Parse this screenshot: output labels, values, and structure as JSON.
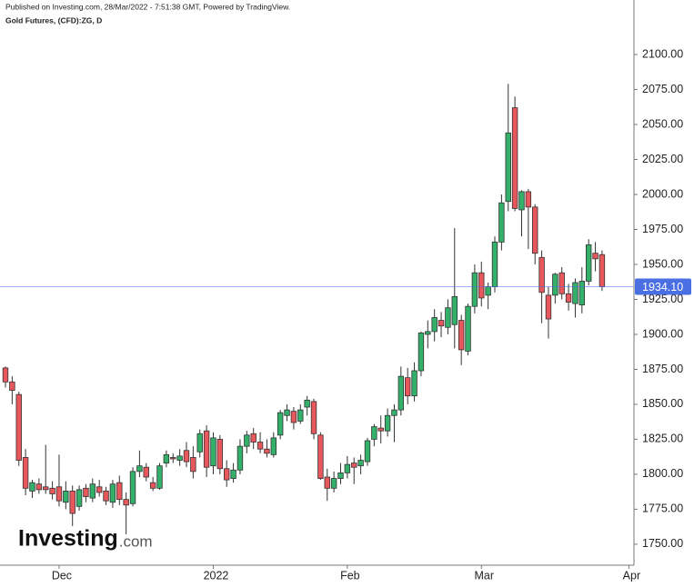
{
  "header": {
    "published": "Published on Investing.com, 28/Mar/2022 - 7:51:38 GMT, Powered by TradingView.",
    "symbol": "Gold Futures, (CFD):ZG, D"
  },
  "watermark": {
    "brand": "Investing",
    "suffix": ".com"
  },
  "chart_data": {
    "type": "candlestick",
    "categories": [
      null,
      null,
      null,
      null,
      null,
      null,
      null,
      null,
      "Dec",
      null,
      null,
      null,
      null,
      null,
      null,
      null,
      null,
      null,
      null,
      null,
      null,
      null,
      null,
      null,
      null,
      null,
      null,
      null,
      null,
      null,
      null,
      "2022",
      null,
      null,
      null,
      null,
      null,
      null,
      null,
      null,
      null,
      null,
      null,
      null,
      null,
      null,
      null,
      null,
      null,
      null,
      null,
      "Feb",
      null,
      null,
      null,
      null,
      null,
      null,
      null,
      null,
      null,
      null,
      null,
      null,
      null,
      null,
      null,
      null,
      null,
      null,
      null,
      "Mar",
      null,
      null,
      null,
      null,
      null,
      null,
      null,
      null,
      null,
      null,
      null,
      null,
      null,
      null,
      null,
      null,
      null,
      null,
      null,
      null,
      null,
      "Apr"
    ],
    "open": [
      1876,
      1866,
      1857,
      1812,
      1788,
      1793,
      1791,
      1790,
      1791,
      1780,
      1788,
      1777,
      1790,
      1783,
      1791,
      1788,
      1780,
      1794,
      1782,
      1779,
      1802,
      1805,
      1794,
      1790,
      1808,
      1812,
      1810,
      1817,
      1812,
      1816,
      1831,
      1806,
      1825,
      1804,
      1797,
      1803,
      1820,
      1829,
      1823,
      1818,
      1814,
      1828,
      1842,
      1845,
      1838,
      1848,
      1852,
      1828,
      1798,
      1790,
      1797,
      1801,
      1808,
      1806,
      1809,
      1825,
      1833,
      1831,
      1842,
      1846,
      1869,
      1856,
      1874,
      1900,
      1902,
      1910,
      1905,
      1907,
      1910,
      1888,
      1920,
      1944,
      1928,
      1934,
      1966,
      1995,
      2062,
      1989,
      2002,
      1991,
      1955,
      1928,
      1928,
      1944,
      1929,
      1922,
      1921,
      1938,
      1958,
      1957,
      null,
      null,
      null,
      null
    ],
    "high": [
      1877,
      1870,
      1859,
      1818,
      1796,
      1797,
      1821,
      1795,
      1814,
      1795,
      1792,
      1792,
      1793,
      1797,
      1796,
      1791,
      1796,
      1799,
      1787,
      1805,
      1817,
      1808,
      1798,
      1808,
      1817,
      1815,
      1818,
      1823,
      1820,
      1832,
      1835,
      1830,
      1828,
      1810,
      1808,
      1825,
      1831,
      1833,
      1830,
      1825,
      1830,
      1846,
      1850,
      1848,
      1850,
      1856,
      1854,
      1830,
      1804,
      1802,
      1808,
      1813,
      1812,
      1814,
      1826,
      1836,
      1842,
      1847,
      1850,
      1877,
      1876,
      1880,
      1902,
      1910,
      1918,
      1916,
      1925,
      1976,
      1914,
      1922,
      1950,
      1952,
      1937,
      1970,
      2000,
      2079,
      2070,
      2003,
      2004,
      1993,
      1960,
      1934,
      1944,
      1948,
      1936,
      1940,
      1948,
      1968,
      1966,
      1960,
      null,
      null,
      null,
      null
    ],
    "low": [
      1862,
      1850,
      1806,
      1785,
      1783,
      1786,
      1786,
      1782,
      1777,
      1775,
      1763,
      1774,
      1780,
      1780,
      1784,
      1778,
      1776,
      1778,
      1757,
      1777,
      1798,
      1795,
      1788,
      1789,
      1805,
      1808,
      1806,
      1805,
      1797,
      1812,
      1798,
      1800,
      1800,
      1791,
      1794,
      1800,
      1815,
      1818,
      1815,
      1812,
      1812,
      1825,
      1838,
      1832,
      1836,
      1842,
      1825,
      1796,
      1781,
      1787,
      1793,
      1797,
      1793,
      1800,
      1806,
      1820,
      1822,
      1827,
      1823,
      1842,
      1850,
      1852,
      1870,
      1890,
      1895,
      1898,
      1900,
      1890,
      1878,
      1885,
      1915,
      1920,
      1918,
      1930,
      1960,
      1988,
      1988,
      1970,
      1961,
      1950,
      1908,
      1897,
      1922,
      1925,
      1917,
      1912,
      1915,
      1935,
      1945,
      1931,
      null,
      null,
      null,
      null
    ],
    "close": [
      1866,
      1860,
      1810,
      1790,
      1794,
      1789,
      1789,
      1786,
      1781,
      1788,
      1772,
      1789,
      1784,
      1793,
      1787,
      1781,
      1793,
      1782,
      1778,
      1802,
      1806,
      1798,
      1790,
      1806,
      1814,
      1811,
      1813,
      1809,
      1802,
      1829,
      1805,
      1826,
      1804,
      1796,
      1803,
      1820,
      1828,
      1823,
      1818,
      1815,
      1826,
      1844,
      1846,
      1837,
      1846,
      1853,
      1829,
      1797,
      1790,
      1797,
      1801,
      1807,
      1805,
      1810,
      1824,
      1834,
      1831,
      1842,
      1846,
      1870,
      1856,
      1874,
      1901,
      1902,
      1912,
      1906,
      1919,
      1927,
      1889,
      1920,
      1944,
      1926,
      1934,
      1966,
      1994,
      2044,
      1990,
      2002,
      1991,
      1958,
      1930,
      1911,
      1943,
      1929,
      1923,
      1937,
      1938,
      1964,
      1954,
      1934.1,
      null,
      null,
      null,
      null
    ],
    "up_color": "#33b06a",
    "down_color": "#e8575b",
    "ylim": [
      1735,
      2139
    ],
    "yticks": [
      {
        "value": 1750,
        "label": "1750.00"
      },
      {
        "value": 1775,
        "label": "1775.00"
      },
      {
        "value": 1800,
        "label": "1800.00"
      },
      {
        "value": 1825,
        "label": "1825.00"
      },
      {
        "value": 1850,
        "label": "1850.00"
      },
      {
        "value": 1875,
        "label": "1875.00"
      },
      {
        "value": 1900,
        "label": "1900.00"
      },
      {
        "value": 1925,
        "label": "1925.00"
      },
      {
        "value": 1950,
        "label": "1950.00"
      },
      {
        "value": 1975,
        "label": "1975.00"
      },
      {
        "value": 2000,
        "label": "2000.00"
      },
      {
        "value": 2025,
        "label": "2025.00"
      },
      {
        "value": 2050,
        "label": "2050.00"
      },
      {
        "value": 2075,
        "label": "2075.00"
      },
      {
        "value": 2100,
        "label": "2100.00"
      }
    ],
    "last_price": {
      "value": 1934.1,
      "label": "1934.10"
    },
    "last_price_color": "#4a6fe3"
  }
}
